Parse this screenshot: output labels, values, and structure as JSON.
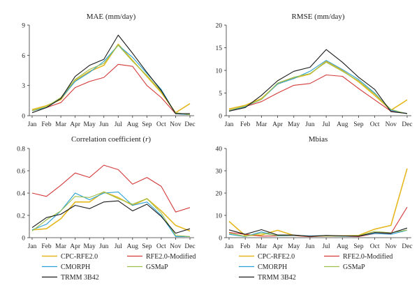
{
  "chart_data": [
    {
      "type": "line",
      "title": "MAE (mm/day)",
      "categories": [
        "Jan",
        "Feb",
        "Mar",
        "Apr",
        "May",
        "Jun",
        "Jul",
        "Aug",
        "Sep",
        "Oct",
        "Nov",
        "Dec"
      ],
      "ylim": [
        0,
        9
      ],
      "yticks": [
        "0",
        "3",
        "6",
        "9"
      ],
      "grid": false,
      "series": [
        {
          "name": "TRMM 3B42",
          "values": [
            0.3,
            0.8,
            1.7,
            3.9,
            5.0,
            5.6,
            8.0,
            6.2,
            4.3,
            2.5,
            0.2,
            0.2
          ]
        },
        {
          "name": "CPC-RFE2.0",
          "values": [
            0.6,
            1.0,
            1.6,
            3.5,
            4.4,
            5.0,
            7.1,
            5.5,
            3.9,
            2.3,
            0.3,
            1.2
          ]
        },
        {
          "name": "RFE2.0-Modified",
          "values": [
            0.5,
            0.8,
            1.3,
            2.8,
            3.4,
            3.8,
            5.1,
            4.9,
            3.0,
            1.8,
            0.2,
            0.1
          ]
        },
        {
          "name": "CMORPH",
          "values": [
            0.5,
            0.8,
            1.7,
            3.4,
            4.3,
            5.4,
            7.0,
            5.8,
            4.2,
            2.6,
            0.2,
            0.1
          ]
        },
        {
          "name": "GSMaP",
          "values": [
            0.5,
            0.9,
            1.8,
            3.6,
            4.6,
            5.2,
            7.0,
            5.4,
            4.0,
            2.4,
            0.3,
            0.1
          ]
        }
      ]
    },
    {
      "type": "line",
      "title": "RMSE (mm/day)",
      "categories": [
        "Jan",
        "Feb",
        "Mar",
        "Apr",
        "May",
        "Jun",
        "Jul",
        "Aug",
        "Sep",
        "Oct",
        "Nov",
        "Dec"
      ],
      "ylim": [
        0,
        20
      ],
      "yticks": [
        "0",
        "5",
        "10",
        "15",
        "20"
      ],
      "grid": false,
      "series": [
        {
          "name": "TRMM 3B42",
          "values": [
            1.0,
            1.8,
            4.5,
            7.7,
            9.8,
            10.7,
            14.6,
            11.8,
            8.5,
            5.8,
            0.9,
            0.5
          ]
        },
        {
          "name": "CPC-RFE2.0",
          "values": [
            1.5,
            2.3,
            3.8,
            7.0,
            8.3,
            9.2,
            12.0,
            10.0,
            7.5,
            4.5,
            1.2,
            3.5
          ]
        },
        {
          "name": "RFE2.0-Modified",
          "values": [
            1.2,
            2.0,
            3.1,
            5.0,
            6.7,
            7.1,
            9.0,
            8.7,
            6.0,
            3.5,
            1.0,
            0.5
          ]
        },
        {
          "name": "CMORPH",
          "values": [
            1.0,
            2.0,
            3.6,
            7.0,
            8.2,
            9.8,
            12.2,
            10.2,
            8.0,
            5.0,
            1.2,
            0.5
          ]
        },
        {
          "name": "GSMaP",
          "values": [
            1.2,
            2.1,
            3.6,
            7.2,
            8.5,
            9.3,
            11.8,
            9.8,
            7.7,
            4.8,
            1.4,
            0.4
          ]
        }
      ]
    },
    {
      "type": "line",
      "title": "Correlation coefficient (",
      "title_italic": "r",
      "title_suffix": ")",
      "categories": [
        "Jan",
        "Feb",
        "Mar",
        "Apr",
        "May",
        "Jun",
        "Jul",
        "Aug",
        "Sep",
        "Oct",
        "Nov",
        "Dec"
      ],
      "ylim": [
        0,
        0.8
      ],
      "yticks": [
        "0",
        "0.2",
        "0.4",
        "0.6",
        "0.8"
      ],
      "grid": false,
      "series": [
        {
          "name": "TRMM 3B42",
          "values": [
            0.09,
            0.18,
            0.21,
            0.29,
            0.26,
            0.32,
            0.33,
            0.24,
            0.3,
            0.19,
            0.04,
            0.08
          ]
        },
        {
          "name": "CPC-RFE2.0",
          "values": [
            0.07,
            0.08,
            0.17,
            0.32,
            0.32,
            0.41,
            0.36,
            0.29,
            0.35,
            0.24,
            0.11,
            0.06
          ]
        },
        {
          "name": "RFE2.0-Modified",
          "values": [
            0.4,
            0.37,
            0.47,
            0.58,
            0.54,
            0.65,
            0.61,
            0.48,
            0.54,
            0.46,
            0.23,
            0.27
          ]
        },
        {
          "name": "CMORPH",
          "values": [
            0.07,
            0.12,
            0.24,
            0.4,
            0.34,
            0.4,
            0.41,
            0.29,
            0.32,
            0.2,
            0.01,
            0.01
          ]
        },
        {
          "name": "GSMaP",
          "values": [
            0.06,
            0.16,
            0.24,
            0.37,
            0.36,
            0.41,
            0.35,
            0.3,
            0.35,
            0.22,
            0.02,
            0.01
          ]
        }
      ]
    },
    {
      "type": "line",
      "title": "Mbias",
      "categories": [
        "Jan",
        "Feb",
        "Mar",
        "Apr",
        "May",
        "Jun",
        "Jul",
        "Aug",
        "Sep",
        "Oct",
        "Nov",
        "Dec"
      ],
      "ylim": [
        0,
        40
      ],
      "yticks": [
        "0",
        "10",
        "20",
        "30",
        "40"
      ],
      "grid": false,
      "series": [
        {
          "name": "TRMM 3B42",
          "values": [
            3.5,
            1.5,
            3.6,
            1.2,
            1.2,
            0.6,
            1.0,
            0.8,
            0.7,
            2.3,
            2.0,
            4.3
          ]
        },
        {
          "name": "CPC-RFE2.0",
          "values": [
            7.3,
            0.9,
            1.2,
            3.3,
            1.0,
            0.6,
            0.8,
            0.8,
            1.0,
            3.8,
            5.5,
            31.0
          ]
        },
        {
          "name": "RFE2.0-Modified",
          "values": [
            2.3,
            1.5,
            0.7,
            0.8,
            0.9,
            0.4,
            0.8,
            0.7,
            0.5,
            1.8,
            1.8,
            13.7
          ]
        },
        {
          "name": "CMORPH",
          "values": [
            1.5,
            0.5,
            2.6,
            0.8,
            1.0,
            0.8,
            0.9,
            0.6,
            0.8,
            1.9,
            1.5,
            3.3
          ]
        },
        {
          "name": "GSMaP",
          "values": [
            2.0,
            0.6,
            2.0,
            1.0,
            1.1,
            0.6,
            0.8,
            0.7,
            0.9,
            2.8,
            2.2,
            3.4
          ]
        }
      ]
    }
  ],
  "series_colors": {
    "TRMM 3B42": "#1a1a1a",
    "CPC-RFE2.0": "#e6b820",
    "RFE2.0-Modified": "#d43a3a",
    "CMORPH": "#2a9fd6",
    "GSMaP": "#9cc04a"
  },
  "legends": [
    {
      "panel": 2,
      "items": [
        "CPC-RFE2.0",
        "RFE2.0-Modified",
        "CMORPH",
        "GSMaP",
        "TRMM 3B42"
      ]
    },
    {
      "panel": 3,
      "items": [
        "CPC-RFE2.0",
        "RFE2.0-Modified",
        "CMORPH",
        "GSMaP",
        "TRMM 3B42"
      ]
    }
  ]
}
